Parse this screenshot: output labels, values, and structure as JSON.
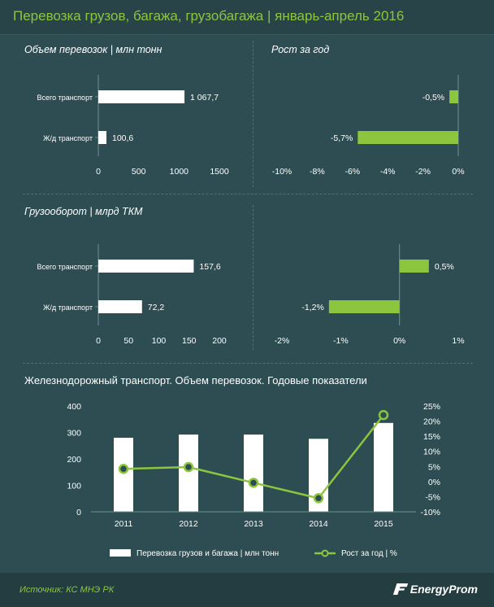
{
  "title": "Перевозка грузов, багажа, грузобагажа  |  январь-апрель 2016",
  "panels": {
    "volume_title": "Объем перевозок  |  млн тонн",
    "growth_title": "Рост за год",
    "turnover_title": "Грузооборот  |  млрд ТКМ"
  },
  "footer": {
    "source": "Источник: КС МНЭ РК",
    "logo": "EnergyProm"
  },
  "colors": {
    "bg": "#2d4d52",
    "green": "#8cc63f",
    "white": "#ffffff"
  },
  "chart_data": [
    {
      "type": "bar",
      "orientation": "horizontal",
      "id": "volume",
      "categories": [
        "Всего транспорт",
        "Ж/д транспорт"
      ],
      "values": [
        1067.7,
        100.6
      ],
      "value_labels": [
        "1 067,7",
        "100,6"
      ],
      "xlim": [
        0,
        1500
      ],
      "ticks": [
        0,
        500,
        1000,
        1500
      ],
      "tick_labels": [
        "0",
        "500",
        "1000",
        "1500"
      ]
    },
    {
      "type": "bar",
      "orientation": "horizontal",
      "id": "volume_growth",
      "categories": [
        "Всего транспорт",
        "Ж/д транспорт"
      ],
      "values": [
        -0.5,
        -5.7
      ],
      "value_labels": [
        "-0,5%",
        "-5,7%"
      ],
      "xlim": [
        -10,
        0
      ],
      "ticks": [
        -10,
        -8,
        -6,
        -4,
        -2,
        0
      ],
      "tick_labels": [
        "-10%",
        "-8%",
        "-6%",
        "-4%",
        "-2%",
        "0%"
      ]
    },
    {
      "type": "bar",
      "orientation": "horizontal",
      "id": "turnover",
      "categories": [
        "Всего транспорт",
        "Ж/д транспорт"
      ],
      "values": [
        157.6,
        72.2
      ],
      "value_labels": [
        "157,6",
        "72,2"
      ],
      "xlim": [
        0,
        200
      ],
      "ticks": [
        0,
        50,
        100,
        150,
        200
      ],
      "tick_labels": [
        "0",
        "50",
        "100",
        "150",
        "200"
      ]
    },
    {
      "type": "bar",
      "orientation": "horizontal",
      "id": "turnover_growth",
      "categories": [
        "Всего транспорт",
        "Ж/д транспорт"
      ],
      "values": [
        0.5,
        -1.2
      ],
      "value_labels": [
        "0,5%",
        "-1,2%"
      ],
      "xlim": [
        -2,
        1
      ],
      "ticks": [
        -2,
        -1,
        0,
        1
      ],
      "tick_labels": [
        "-2%",
        "-1%",
        "0%",
        "1%"
      ]
    },
    {
      "type": "bar+line",
      "id": "annual",
      "title": "Железнодорожный транспорт. Объем перевозок. Годовые показатели",
      "categories": [
        "2011",
        "2012",
        "2013",
        "2014",
        "2015"
      ],
      "series": [
        {
          "name": "Перевозка грузов и багажа | млн тонн",
          "type": "bar",
          "axis": "left",
          "values": [
            280,
            292,
            292,
            276,
            336
          ]
        },
        {
          "name": "Рост за год | %",
          "type": "line",
          "axis": "right",
          "values": [
            4.2,
            4.8,
            -0.4,
            -5.5,
            22.0
          ]
        }
      ],
      "ylim_left": [
        0,
        400
      ],
      "ticks_left": [
        "0",
        "100",
        "200",
        "300",
        "400"
      ],
      "ylim_right": [
        -10,
        25
      ],
      "ticks_right": [
        "-10%",
        "-5%",
        "0%",
        "5%",
        "10%",
        "15%",
        "20%",
        "25%"
      ]
    }
  ]
}
